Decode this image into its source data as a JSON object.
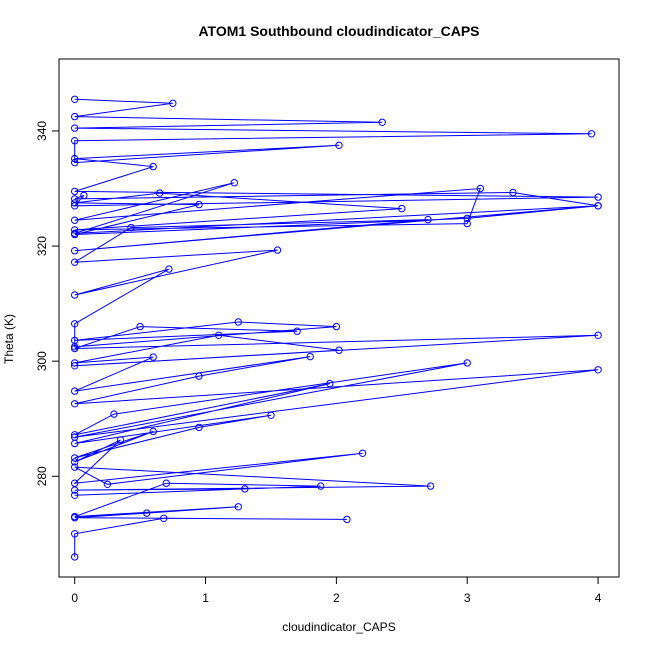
{
  "chart_data": {
    "type": "line",
    "title": "ATOM1 Southbound cloudindicator_CAPS",
    "xlabel": "cloudindicator_CAPS",
    "ylabel": "Theta (K)",
    "xlim": [
      -0.12,
      4.16
    ],
    "ylim": [
      262.5,
      352.5
    ],
    "xticks": [
      0,
      1,
      2,
      3,
      4
    ],
    "yticks": [
      280,
      300,
      320,
      340
    ],
    "series_color": "#0000ff",
    "series": [
      {
        "name": "cloudindicator_CAPS",
        "x": [
          0,
          0.75,
          0,
          2.35,
          0,
          3.95,
          0,
          0,
          2.02,
          0,
          0.6,
          0,
          4.0,
          0,
          0.07,
          0,
          3.35,
          4.0,
          0,
          1.22,
          0,
          3.1,
          3.0,
          0,
          2.5,
          0.65,
          0,
          0.95,
          0,
          3.0,
          4.0,
          0,
          2.7,
          0.43,
          0,
          1.55,
          0,
          0.72,
          0,
          0,
          2.0,
          1.25,
          0,
          1.7,
          0.5,
          0,
          4.0,
          0,
          2.02,
          1.1,
          0,
          0.6,
          0,
          1.8,
          0.95,
          0,
          4.0,
          0,
          3.0,
          0.3,
          0,
          1.95,
          0,
          1.5,
          0.95,
          0,
          0.6,
          0,
          0.35,
          0,
          2.2,
          0.25,
          0,
          2.72,
          0,
          1.3,
          0,
          1.88,
          0.7,
          0,
          1.25,
          0.55,
          0,
          2.08,
          0.68,
          0,
          0
        ],
        "y": [
          345.5,
          344.8,
          342.5,
          341.5,
          340.5,
          339.5,
          338.3,
          334.5,
          337.5,
          335.2,
          333.8,
          329.5,
          328.5,
          327,
          328.8,
          328.2,
          329.3,
          327,
          322.2,
          331,
          324.5,
          330,
          323.9,
          322.8,
          326.5,
          329.2,
          327.5,
          327.2,
          322,
          324.8,
          327,
          319.2,
          324.6,
          323.2,
          317.2,
          319.3,
          311.5,
          316,
          306.5,
          302.5,
          306,
          306.8,
          303.6,
          305.2,
          306,
          302.2,
          304.5,
          299.2,
          301.9,
          304.5,
          299.7,
          300.7,
          294.8,
          300.8,
          297.4,
          292.6,
          298.5,
          286.8,
          299.7,
          290.8,
          287.2,
          296.1,
          285.7,
          290.6,
          288.5,
          283.2,
          287.8,
          282.5,
          286.3,
          278.8,
          284,
          278.6,
          281.6,
          278.3,
          277.6,
          277.8,
          276.7,
          278.3,
          278.8,
          273,
          274.7,
          273.6,
          272.8,
          272.5,
          272.7,
          270,
          266
        ]
      }
    ]
  }
}
